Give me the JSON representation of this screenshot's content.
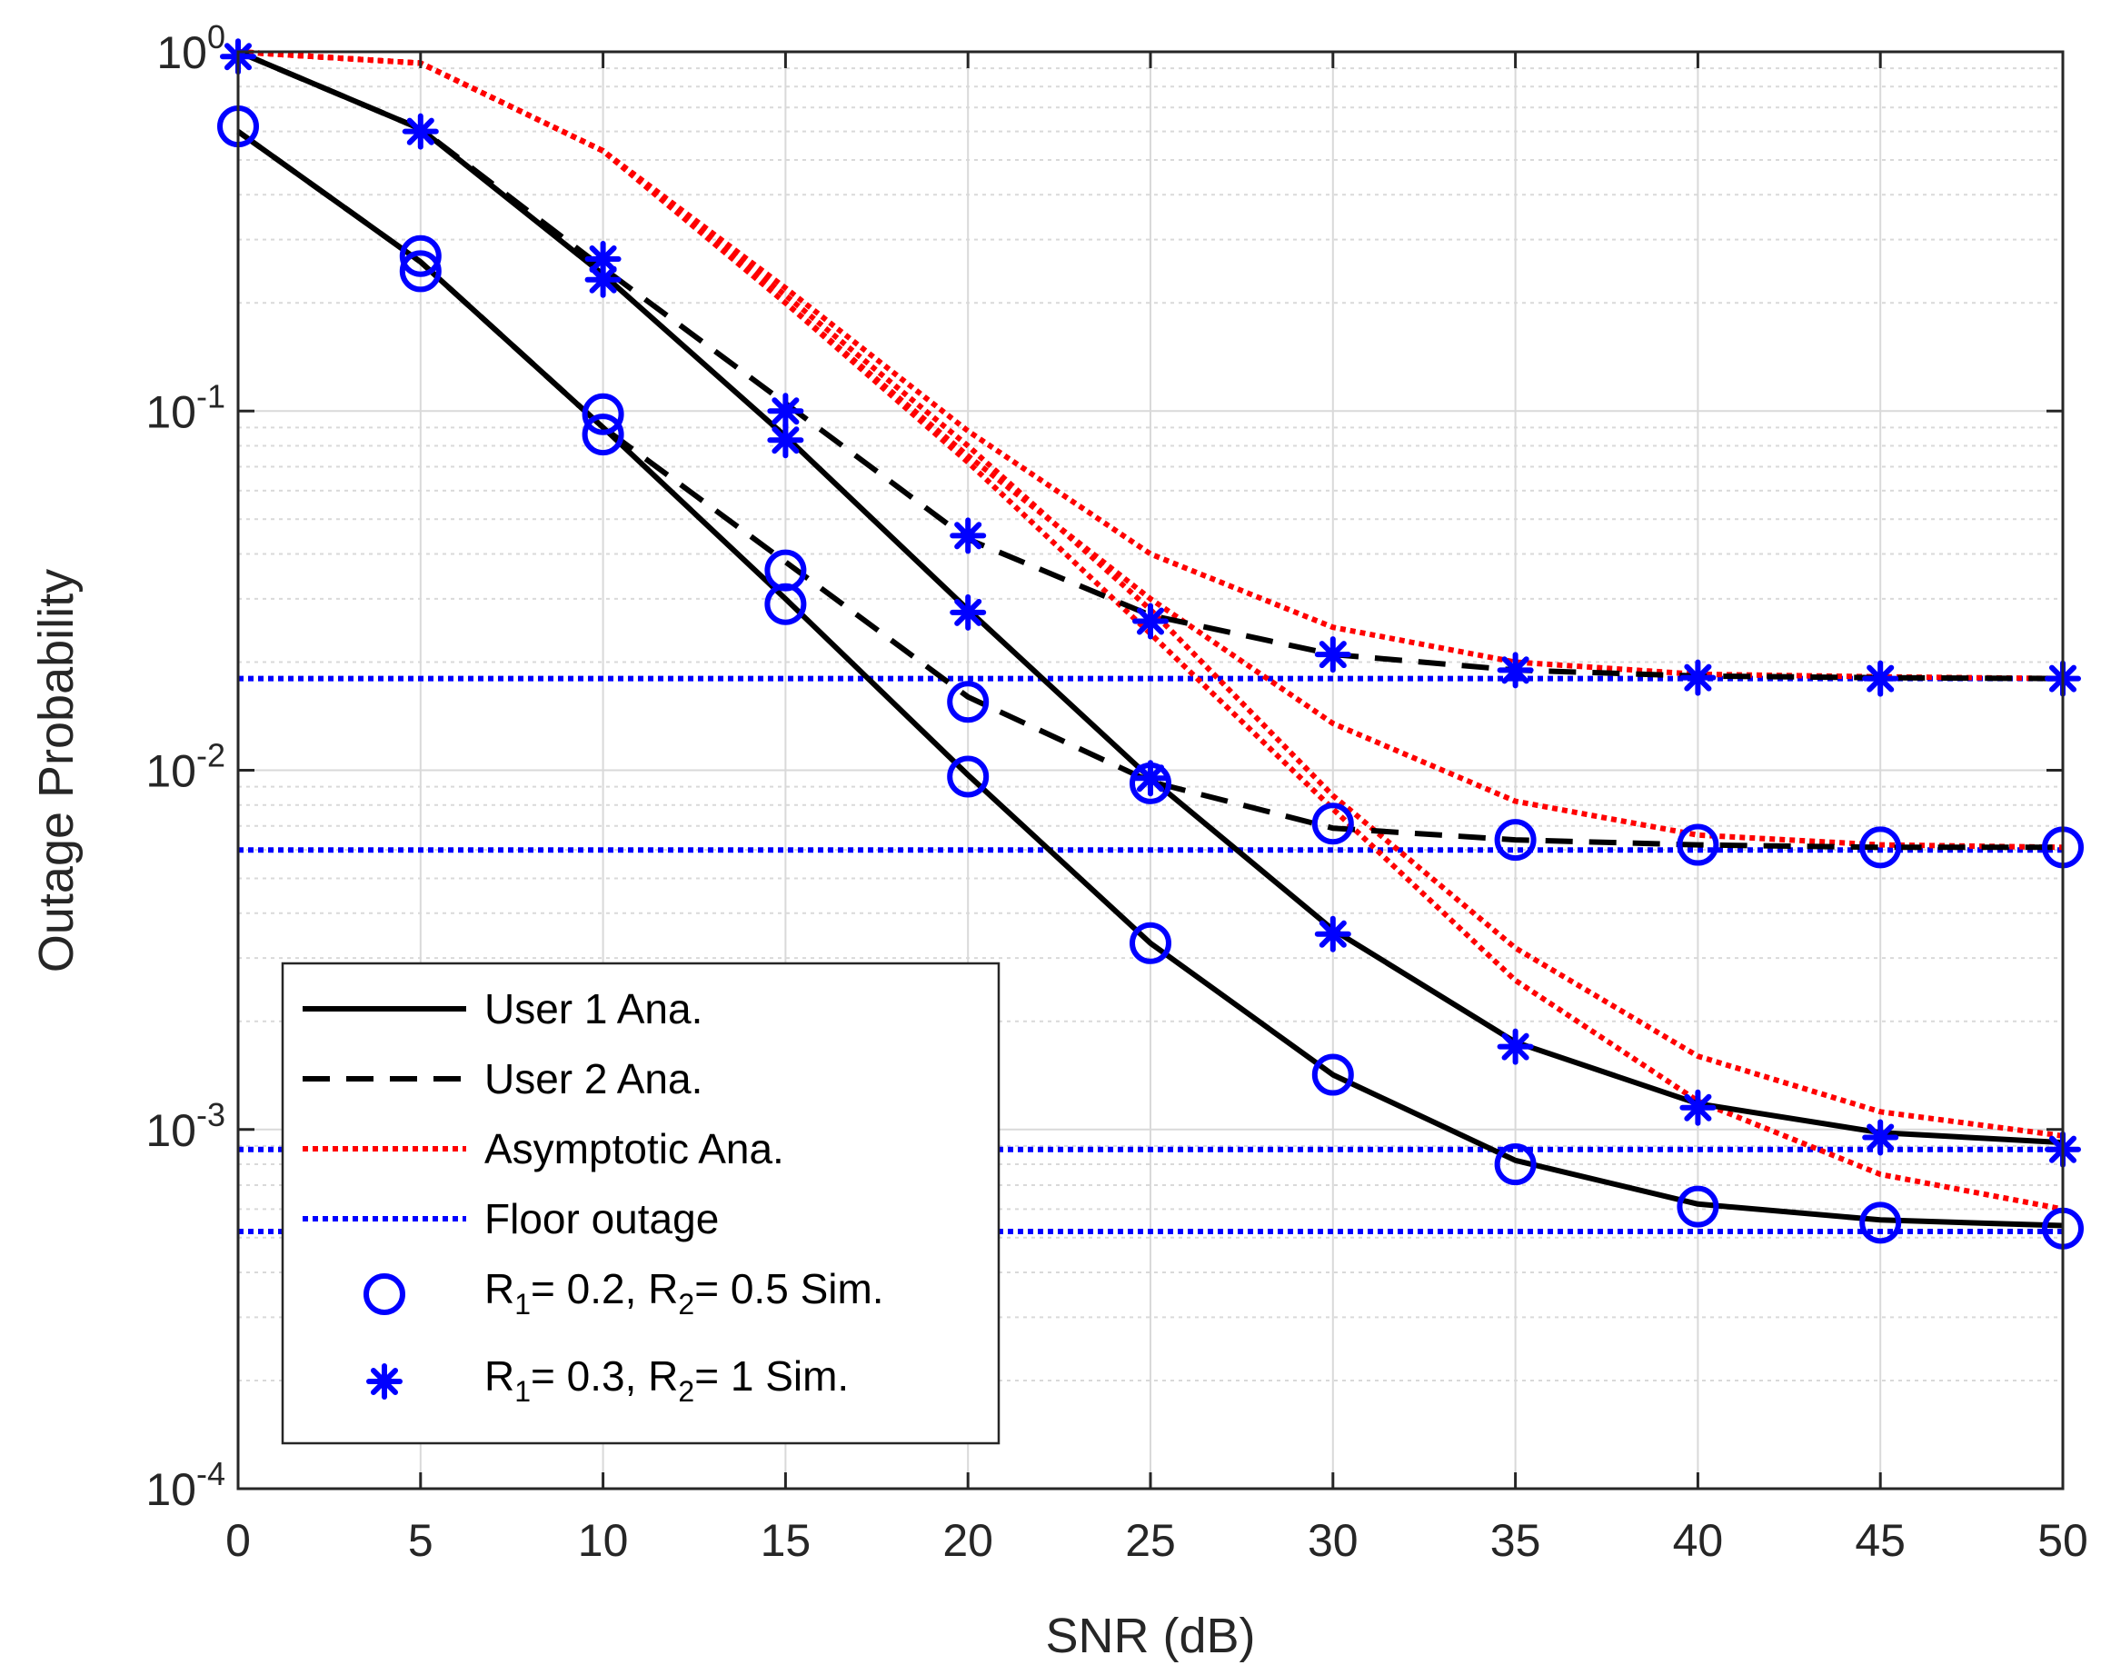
{
  "chart_data": {
    "type": "line",
    "title": "",
    "xlabel": "SNR (dB)",
    "ylabel": "Outage Probability",
    "xscale": "linear",
    "yscale": "log",
    "xlim": [
      0,
      50
    ],
    "ylim_exponents": [
      -4,
      0
    ],
    "grid": true,
    "legend_position": "bottom-left",
    "x_ticks": [
      "0",
      "5",
      "10",
      "15",
      "20",
      "25",
      "30",
      "35",
      "40",
      "45",
      "50"
    ],
    "y_tick_exponents": [
      "0",
      "-1",
      "-2",
      "-3",
      "-4"
    ],
    "y_tick_base": "10",
    "legend": [
      {
        "label": "User 1 Ana.",
        "style": "solid"
      },
      {
        "label": "User 2 Ana.",
        "style": "dashed"
      },
      {
        "label": "Asymptotic Ana.",
        "style": "red-dotted"
      },
      {
        "label": "Floor outage",
        "style": "blue-dotted"
      },
      {
        "label_parts": [
          "R",
          "1",
          "= 0.2, R",
          "2",
          "= 0.5 Sim."
        ],
        "style": "circle"
      },
      {
        "label_parts": [
          "R",
          "1",
          "= 0.3, R",
          "2",
          "= 1 Sim."
        ],
        "style": "asterisk"
      }
    ],
    "x": [
      0,
      5,
      10,
      15,
      20,
      25,
      30,
      35,
      40,
      45,
      50
    ],
    "series": [
      {
        "name": "User 1 Ana. (R1=0.2, R2=0.5)",
        "style": "solid",
        "values": [
          0.6,
          0.26,
          0.09,
          0.03,
          0.0097,
          0.0033,
          0.00142,
          0.00082,
          0.00062,
          0.00056,
          0.00054
        ]
      },
      {
        "name": "User 1 Ana. (R1=0.3, R2=1)",
        "style": "solid",
        "values": [
          1.0,
          0.61,
          0.24,
          0.085,
          0.028,
          0.0095,
          0.0036,
          0.00175,
          0.00118,
          0.00098,
          0.00092
        ]
      },
      {
        "name": "User 2 Ana. (R1=0.2, R2=0.5)",
        "style": "dashed",
        "values": [
          0.6,
          0.26,
          0.09,
          0.038,
          0.016,
          0.0093,
          0.0069,
          0.0064,
          0.0062,
          0.0061,
          0.0061
        ]
      },
      {
        "name": "User 2 Ana. (R1=0.3, R2=1)",
        "style": "dashed",
        "values": [
          1.0,
          0.61,
          0.25,
          0.105,
          0.044,
          0.027,
          0.021,
          0.019,
          0.0183,
          0.0181,
          0.018
        ]
      },
      {
        "name": "Asymptotic (R1=0.3, R2=1) User 2",
        "style": "red-dotted",
        "values": [
          1.0,
          0.93,
          0.53,
          0.22,
          0.088,
          0.04,
          0.025,
          0.02,
          0.0185,
          0.0182,
          0.018
        ]
      },
      {
        "name": "Asymptotic (R1=0.3, R2=1) User 1",
        "style": "red-dotted",
        "values": [
          1.0,
          0.93,
          0.53,
          0.2,
          0.075,
          0.03,
          0.0135,
          0.0082,
          0.0066,
          0.0062,
          0.0061
        ]
      },
      {
        "name": "Asymptotic (R1=0.2, R2=0.5) User 2",
        "style": "red-dotted",
        "values": [
          1.0,
          0.93,
          0.53,
          0.21,
          0.08,
          0.028,
          0.0085,
          0.0032,
          0.0016,
          0.00112,
          0.00096
        ]
      },
      {
        "name": "Asymptotic (R1=0.2, R2=0.5) User 1",
        "style": "red-dotted",
        "values": [
          1.0,
          0.93,
          0.53,
          0.2,
          0.072,
          0.024,
          0.0078,
          0.0026,
          0.0012,
          0.00075,
          0.0006
        ]
      },
      {
        "name": "Floor outage 1",
        "style": "blue-dotted",
        "values": [
          0.018,
          0.018,
          0.018,
          0.018,
          0.018,
          0.018,
          0.018,
          0.018,
          0.018,
          0.018,
          0.018
        ]
      },
      {
        "name": "Floor outage 2",
        "style": "blue-dotted",
        "values": [
          0.006,
          0.006,
          0.006,
          0.006,
          0.006,
          0.006,
          0.006,
          0.006,
          0.006,
          0.006,
          0.006
        ]
      },
      {
        "name": "Floor outage 3",
        "style": "blue-dotted",
        "values": [
          0.00088,
          0.00088,
          0.00088,
          0.00088,
          0.00088,
          0.00088,
          0.00088,
          0.00088,
          0.00088,
          0.00088,
          0.00088
        ]
      },
      {
        "name": "Floor outage 4",
        "style": "blue-dotted",
        "values": [
          0.00052,
          0.00052,
          0.00052,
          0.00052,
          0.00052,
          0.00052,
          0.00052,
          0.00052,
          0.00052,
          0.00052,
          0.00052
        ]
      }
    ],
    "markers": [
      {
        "name": "R1 = 0.2, R2 = 0.5 Sim.",
        "shape": "circle",
        "points": [
          [
            0,
            0.62
          ],
          [
            5,
            0.27
          ],
          [
            5,
            0.245
          ],
          [
            10,
            0.098
          ],
          [
            10,
            0.086
          ],
          [
            15,
            0.036
          ],
          [
            15,
            0.029
          ],
          [
            20,
            0.0155
          ],
          [
            20,
            0.0096
          ],
          [
            25,
            0.0092
          ],
          [
            25,
            0.0033
          ],
          [
            30,
            0.0071
          ],
          [
            30,
            0.00142
          ],
          [
            35,
            0.0064
          ],
          [
            35,
            0.0008
          ],
          [
            40,
            0.0062
          ],
          [
            40,
            0.00061
          ],
          [
            45,
            0.0061
          ],
          [
            45,
            0.00055
          ],
          [
            50,
            0.0061
          ],
          [
            50,
            0.00053
          ]
        ]
      },
      {
        "name": "R1 = 0.3, R2 = 1 Sim.",
        "shape": "asterisk",
        "points": [
          [
            0,
            0.97
          ],
          [
            5,
            0.6
          ],
          [
            10,
            0.265
          ],
          [
            10,
            0.232
          ],
          [
            15,
            0.1
          ],
          [
            15,
            0.083
          ],
          [
            20,
            0.045
          ],
          [
            20,
            0.0275
          ],
          [
            25,
            0.026
          ],
          [
            25,
            0.0095
          ],
          [
            30,
            0.021
          ],
          [
            30,
            0.0035
          ],
          [
            35,
            0.019
          ],
          [
            35,
            0.0017
          ],
          [
            40,
            0.0181
          ],
          [
            40,
            0.00115
          ],
          [
            45,
            0.018
          ],
          [
            45,
            0.00095
          ],
          [
            50,
            0.018
          ],
          [
            50,
            0.00088
          ]
        ]
      }
    ],
    "colors": {
      "black": "#000000",
      "red": "#ff0000",
      "blue": "#0000ff",
      "grid": "#d9d9d9"
    }
  }
}
